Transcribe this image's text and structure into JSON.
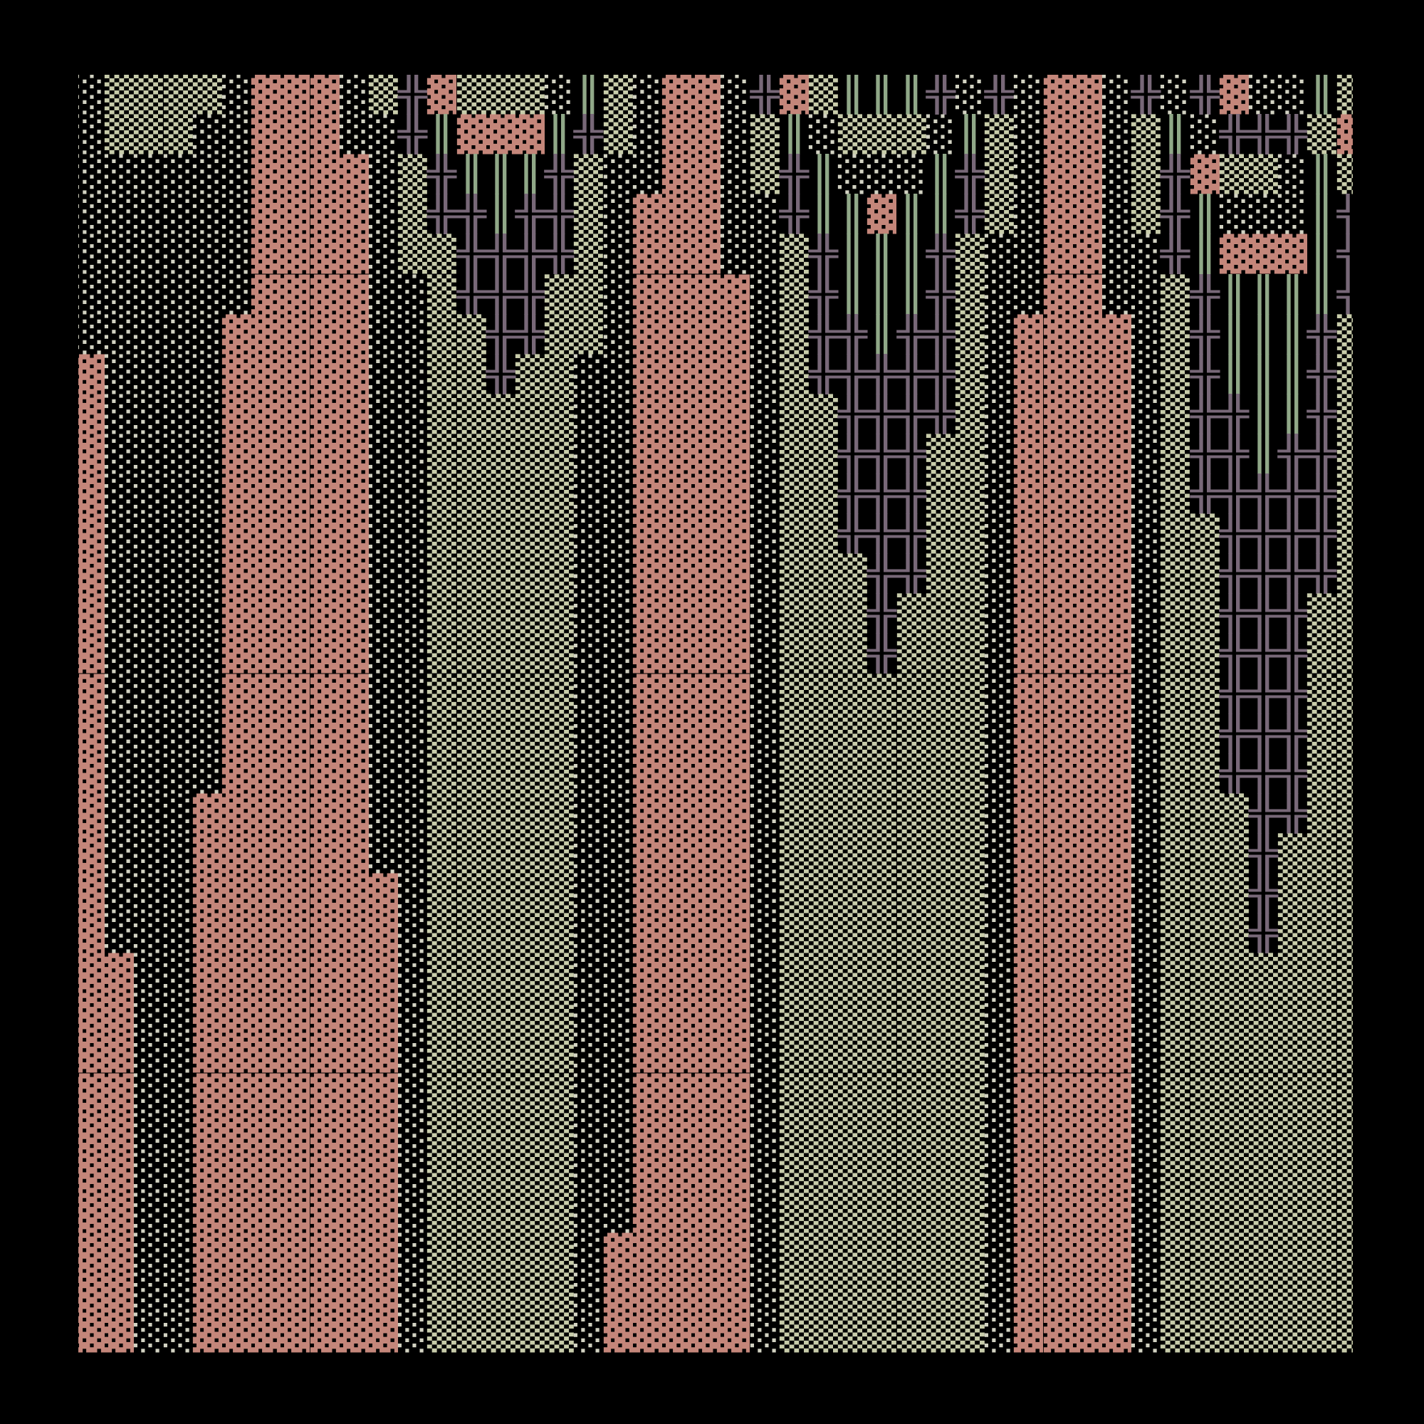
{
  "art": {
    "glyph_colors": {
      "░": "#d2d2c2",
      "▒": "#c8ccaa",
      "▓": "#c4867a",
      "╬": "#786878",
      "║": "#90a888"
    },
    "rows": [
      "░▒▒▒▒░▓▓▓░▒╬▓▒▒▒░║▒░▓▓░╬▓▒║║║╬░╬░▓▓░╬░╬▓░░║▒",
      "░▒▒▒░░▓▓▓░░╬║▓▓▓║╬▒░▓▓░▒║░▒▒▒░║▒░▓▓░▒║░╬╬╬▒▓",
      "░░░░░░▓▓▓▓░▒╬║║║╬▒░░▓▓░▒╬║░░░║╬▒░▓▓░▒╬▓▒▒░║▒",
      "░░░░░░▓▓▓▓░▒╬╬║╬╬▒░▓▓▓░░╬║║▓║║╬▒░▓▓░▒╬║░░░║╬",
      "░░░░░░▓▓▓▓░▒▒╬╬╬╬▒░▓▓▓░░▒╬║║║╬▒░░▓▓░░╬║▓▓▓║╬",
      "░░░░░░▓▓▓▓░░▒╬╬╬▒▒░▓▓▓▓░▒╬║║║╬▒░░▓▓░░▒╬║║║║╬",
      "░░░░░▓▓▓▓▓░░▒▒╬╬▒▒░▓▓▓▓░▒╬╬║╬╬▒░▓▓▓▓░▒╬║║║╬▒",
      "▓░░░░▓▓▓▓▓░░▒▒╬▒▒░░▓▓▓▓░▒╬╬╬╬╬▒░▓▓▓▓░▒╬║║║╬▒",
      "▓░░░░▓▓▓▓▓░░▒▒▒▒▒░░▓▓▓▓░▒▒╬╬╬╬▒░▓▓▓▓░▒╬╬║║╬▒",
      "▓░░░░▓▓▓▓▓░░▒▒▒▒▒░░▓▓▓▓░▒▒╬╬╬▒▒░▓▓▓▓░▒╬╬║╬╬▒",
      "▓░░░░▓▓▓▓▓░░▒▒▒▒▒░░▓▓▓▓░▒▒╬╬╬▒▒░▓▓▓▓░▒╬╬╬╬╬▒",
      "▓░░░░▓▓▓▓▓░░▒▒▒▒▒░░▓▓▓▓░▒▒╬╬╬▒▒░▓▓▓▓░▒▒╬╬╬╬▒",
      "▓░░░░▓▓▓▓▓░░▒▒▒▒▒░░▓▓▓▓░▒▒▒╬╬▒▒░▓▓▓▓░▒▒╬╬╬╬▒",
      "▓░░░░▓▓▓▓▓░░▒▒▒▒▒░░▓▓▓▓░▒▒▒╬▒▒▒░▓▓▓▓░▒▒╬╬╬▒▒",
      "▓░░░░▓▓▓▓▓░░▒▒▒▒▒░░▓▓▓▓░▒▒▒╬▒▒▒░▓▓▓▓░▒▒╬╬╬▒▒",
      "▓░░░░▓▓▓▓▓░░▒▒▒▒▒░░▓▓▓▓░▒▒▒▒▒▒▒░▓▓▓▓░▒▒╬╬╬▒▒",
      "▓░░░░▓▓▓▓▓░░▒▒▒▒▒░░▓▓▓▓░▒▒▒▒▒▒▒░▓▓▓▓░▒▒╬╬╬▒▒",
      "▓░░░░▓▓▓▓▓░░▒▒▒▒▒░░▓▓▓▓░▒▒▒▒▒▒▒░▓▓▓▓░▒▒╬╬╬▒▒",
      "▓░░░▓▓▓▓▓▓░░▒▒▒▒▒░░▓▓▓▓░▒▒▒▒▒▒▒░▓▓▓▓░▒▒▒╬╬▒▒",
      "▓░░░▓▓▓▓▓▓░░▒▒▒▒▒░░▓▓▓▓░▒▒▒▒▒▒▒░▓▓▓▓░▒▒▒╬▒▒▒",
      "▓░░░▓▓▓▓▓▓▓░▒▒▒▒▒░░▓▓▓▓░▒▒▒▒▒▒▒░▓▓▓▓░▒▒▒╬▒▒▒",
      "▓░░░▓▓▓▓▓▓▓░▒▒▒▒▒░░▓▓▓▓░▒▒▒▒▒▒▒░▓▓▓▓░▒▒▒╬▒▒▒",
      "▓▓░░▓▓▓▓▓▓▓░▒▒▒▒▒░░▓▓▓▓░▒▒▒▒▒▒▒░▓▓▓▓░▒▒▒▒▒▒▒",
      "▓▓░░▓▓▓▓▓▓▓░▒▒▒▒▒░░▓▓▓▓░▒▒▒▒▒▒▒░▓▓▓▓░▒▒▒▒▒▒▒",
      "▓▓░░▓▓▓▓▓▓▓░▒▒▒▒▒░░▓▓▓▓░▒▒▒▒▒▒▒░▓▓▓▓░▒▒▒▒▒▒▒",
      "▓▓░░▓▓▓▓▓▓▓░▒▒▒▒▒░░▓▓▓▓░▒▒▒▒▒▒▒░▓▓▓▓░▒▒▒▒▒▒▒",
      "▓▓░░▓▓▓▓▓▓▓░▒▒▒▒▒░░▓▓▓▓░▒▒▒▒▒▒▒░▓▓▓▓░▒▒▒▒▒▒▒",
      "▓▓░░▓▓▓▓▓▓▓░▒▒▒▒▒░░▓▓▓▓░▒▒▒▒▒▒▒░▓▓▓▓░▒▒▒▒▒▒▒",
      "▓▓░░▓▓▓▓▓▓▓░▒▒▒▒▒░░▓▓▓▓░▒▒▒▒▒▒▒░▓▓▓▓░▒▒▒▒▒▒▒",
      "▓▓░░▓▓▓▓▓▓▓░▒▒▒▒▒░▓▓▓▓▓░▒▒▒▒▒▒▒░▓▓▓▓░▒▒▒▒▒▒▒",
      "▓▓░░▓▓▓▓▓▓▓░▒▒▒▒▒░▓▓▓▓▓░▒▒▒▒▒▒▒░▓▓▓▓░▒▒▒▒▒▒▒",
      "▓▓░░▓▓▓▓▓▓▓░▒▒▒▒▒░▓▓▓▓▓░▒▒▒▒▒▒▒░▓▓▓▓░▒▒▒▒▒▒▒"
    ]
  }
}
